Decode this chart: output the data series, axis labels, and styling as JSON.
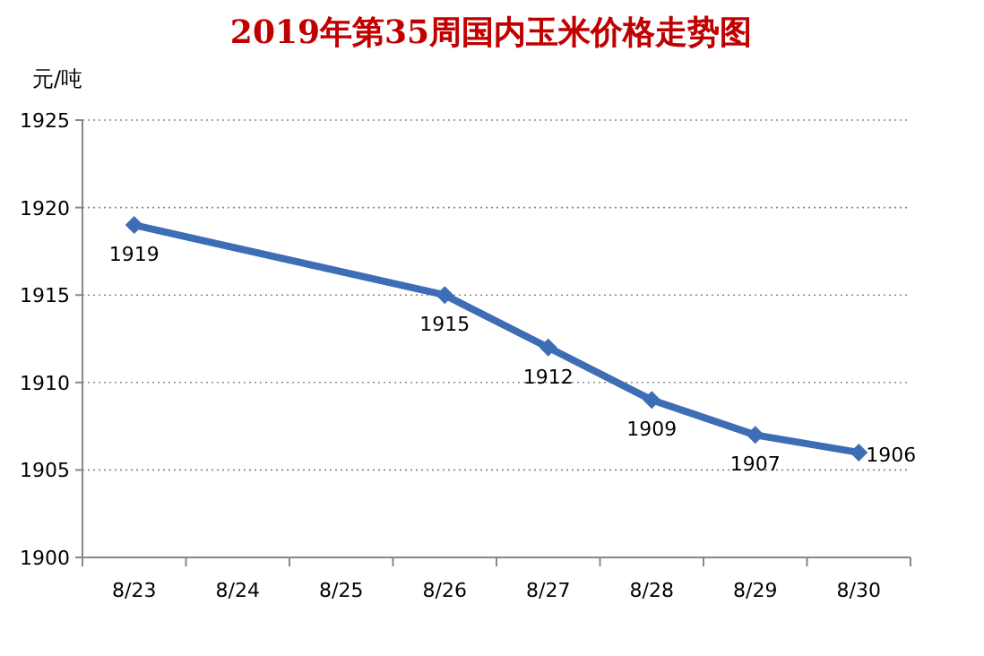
{
  "chart_data": {
    "type": "line",
    "title": "2019年第35周国内玉米价格走势图",
    "ylabel": "元/吨",
    "categories": [
      "8/23",
      "8/24",
      "8/25",
      "8/26",
      "8/27",
      "8/28",
      "8/29",
      "8/30"
    ],
    "series": [
      {
        "color": "#3d6db4",
        "x": [
          "8/23",
          "8/26",
          "8/27",
          "8/28",
          "8/29",
          "8/30"
        ],
        "values": [
          1919,
          1915,
          1912,
          1909,
          1907,
          1906
        ]
      }
    ],
    "ylim": [
      1900,
      1925
    ],
    "yticks": [
      1900,
      1905,
      1910,
      1915,
      1920,
      1925
    ],
    "grid": "y",
    "marker": "diamond",
    "line_style": "solid",
    "data_labels": true
  }
}
